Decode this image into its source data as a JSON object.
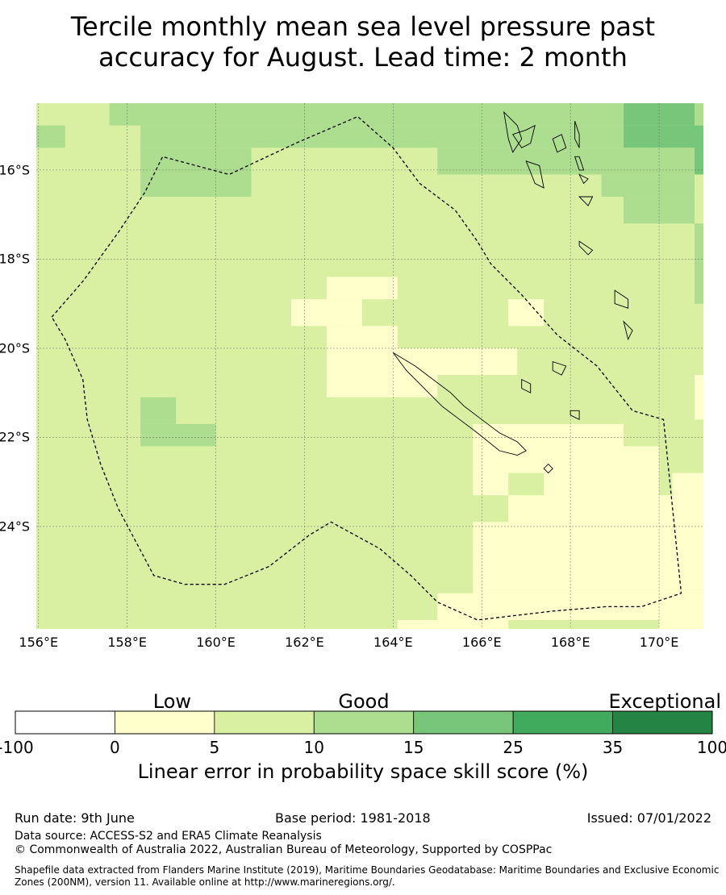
{
  "title": {
    "line1": "Tercile monthly mean sea level pressure past",
    "line2": "accuracy for August. Lead time: 2 month"
  },
  "map": {
    "lon_range": [
      155.95,
      171.0
    ],
    "lat_range": [
      -26.3,
      -14.5
    ],
    "lon_ticks": [
      {
        "value": 156,
        "label": "156°E"
      },
      {
        "value": 158,
        "label": "158°E"
      },
      {
        "value": 160,
        "label": "160°E"
      },
      {
        "value": 162,
        "label": "162°E"
      },
      {
        "value": 164,
        "label": "164°E"
      },
      {
        "value": 166,
        "label": "166°E"
      },
      {
        "value": 168,
        "label": "168°E"
      },
      {
        "value": 170,
        "label": "170°E"
      }
    ],
    "lat_ticks": [
      {
        "value": -16,
        "label": "16°S"
      },
      {
        "value": -18,
        "label": "18°S"
      },
      {
        "value": -20,
        "label": "20°S"
      },
      {
        "value": -22,
        "label": "22°S"
      },
      {
        "value": -24,
        "label": "24°S"
      }
    ],
    "base_class": 2,
    "skill_cells": [
      {
        "lon": [
          156,
          157.6
        ],
        "lat": [
          -15.0,
          -14.5
        ],
        "cls": 2
      },
      {
        "lon": [
          157.6,
          171.0
        ],
        "lat": [
          -15.0,
          -14.5
        ],
        "cls": 3
      },
      {
        "lon": [
          169.2,
          170.8
        ],
        "lat": [
          -15.0,
          -14.5
        ],
        "cls": 4
      },
      {
        "lon": [
          155.95,
          156.6
        ],
        "lat": [
          -15.5,
          -15.0
        ],
        "cls": 3
      },
      {
        "lon": [
          158.3,
          170.8
        ],
        "lat": [
          -15.5,
          -15.0
        ],
        "cls": 3
      },
      {
        "lon": [
          169.2,
          170.8
        ],
        "lat": [
          -15.5,
          -15.0
        ],
        "cls": 4
      },
      {
        "lon": [
          170.8,
          171.0
        ],
        "lat": [
          -16.1,
          -15.0
        ],
        "cls": 4
      },
      {
        "lon": [
          158.3,
          160.8
        ],
        "lat": [
          -16.6,
          -15.5
        ],
        "cls": 3
      },
      {
        "lon": [
          165.0,
          170.8
        ],
        "lat": [
          -16.1,
          -15.5
        ],
        "cls": 3
      },
      {
        "lon": [
          168.7,
          170.8
        ],
        "lat": [
          -16.6,
          -16.1
        ],
        "cls": 3
      },
      {
        "lon": [
          169.2,
          170.8
        ],
        "lat": [
          -17.2,
          -16.6
        ],
        "cls": 3
      },
      {
        "lon": [
          170.8,
          171.0
        ],
        "lat": [
          -19.0,
          -17.2
        ],
        "cls": 3
      },
      {
        "lon": [
          162.5,
          164.1
        ],
        "lat": [
          -18.9,
          -18.4
        ],
        "cls": 1
      },
      {
        "lon": [
          161.7,
          163.3
        ],
        "lat": [
          -19.5,
          -18.9
        ],
        "cls": 1
      },
      {
        "lon": [
          166.6,
          167.4
        ],
        "lat": [
          -19.5,
          -18.9
        ],
        "cls": 1
      },
      {
        "lon": [
          162.5,
          164.1
        ],
        "lat": [
          -20.0,
          -19.5
        ],
        "cls": 1
      },
      {
        "lon": [
          162.5,
          166.8
        ],
        "lat": [
          -20.6,
          -20.0
        ],
        "cls": 1
      },
      {
        "lon": [
          162.5,
          165.0
        ],
        "lat": [
          -21.1,
          -20.6
        ],
        "cls": 1
      },
      {
        "lon": [
          170.8,
          171.0
        ],
        "lat": [
          -21.6,
          -20.6
        ],
        "cls": 1
      },
      {
        "lon": [
          158.3,
          159.1
        ],
        "lat": [
          -21.7,
          -21.1
        ],
        "cls": 3
      },
      {
        "lon": [
          158.3,
          160.0
        ],
        "lat": [
          -22.2,
          -21.7
        ],
        "cls": 3
      },
      {
        "lon": [
          165.8,
          169.2
        ],
        "lat": [
          -22.2,
          -21.7
        ],
        "cls": 1
      },
      {
        "lon": [
          165.8,
          170.0
        ],
        "lat": [
          -22.8,
          -22.2
        ],
        "cls": 1
      },
      {
        "lon": [
          165.8,
          166.6
        ],
        "lat": [
          -23.3,
          -22.8
        ],
        "cls": 1
      },
      {
        "lon": [
          167.4,
          170.0
        ],
        "lat": [
          -23.3,
          -22.8
        ],
        "cls": 1
      },
      {
        "lon": [
          170.3,
          171.0
        ],
        "lat": [
          -24.4,
          -22.8
        ],
        "cls": 1
      },
      {
        "lon": [
          166.6,
          171.0
        ],
        "lat": [
          -23.9,
          -23.3
        ],
        "cls": 1
      },
      {
        "lon": [
          165.8,
          171.0
        ],
        "lat": [
          -25.5,
          -23.9
        ],
        "cls": 1
      },
      {
        "lon": [
          165.0,
          171.0
        ],
        "lat": [
          -26.1,
          -25.5
        ],
        "cls": 1
      },
      {
        "lon": [
          164.1,
          166.6
        ],
        "lat": [
          -26.3,
          -26.1
        ],
        "cls": 1
      },
      {
        "lon": [
          170.0,
          171.0
        ],
        "lat": [
          -26.3,
          -26.1
        ],
        "cls": 1
      }
    ],
    "eez_boundary": [
      [
        156.3,
        -19.3
      ],
      [
        157.0,
        -18.5
      ],
      [
        157.8,
        -17.4
      ],
      [
        158.4,
        -16.5
      ],
      [
        158.8,
        -15.7
      ],
      [
        160.3,
        -16.1
      ],
      [
        161.8,
        -15.4
      ],
      [
        163.2,
        -14.8
      ],
      [
        164.0,
        -15.5
      ],
      [
        164.6,
        -16.3
      ],
      [
        165.4,
        -16.9
      ],
      [
        165.9,
        -17.6
      ],
      [
        166.2,
        -18.1
      ],
      [
        166.9,
        -18.8
      ],
      [
        167.7,
        -19.7
      ],
      [
        168.6,
        -20.4
      ],
      [
        169.4,
        -21.4
      ],
      [
        170.1,
        -21.6
      ],
      [
        170.5,
        -25.5
      ],
      [
        169.6,
        -25.8
      ],
      [
        168.8,
        -25.8
      ],
      [
        167.6,
        -25.9
      ],
      [
        165.9,
        -26.1
      ],
      [
        165.0,
        -25.7
      ],
      [
        164.4,
        -25.1
      ],
      [
        163.7,
        -24.5
      ],
      [
        162.6,
        -23.9
      ],
      [
        162.1,
        -24.2
      ],
      [
        161.2,
        -24.9
      ],
      [
        160.2,
        -25.3
      ],
      [
        159.3,
        -25.3
      ],
      [
        158.6,
        -25.1
      ],
      [
        157.8,
        -23.6
      ],
      [
        157.4,
        -22.6
      ],
      [
        157.1,
        -21.6
      ],
      [
        157.0,
        -20.7
      ],
      [
        156.6,
        -19.8
      ],
      [
        156.3,
        -19.3
      ]
    ],
    "land_polygons": [
      [
        [
          164.0,
          -20.1
        ],
        [
          164.5,
          -20.4
        ],
        [
          164.9,
          -20.7
        ],
        [
          165.3,
          -21.0
        ],
        [
          165.6,
          -21.3
        ],
        [
          166.0,
          -21.6
        ],
        [
          166.4,
          -21.9
        ],
        [
          166.8,
          -22.1
        ],
        [
          167.0,
          -22.3
        ],
        [
          166.8,
          -22.4
        ],
        [
          166.4,
          -22.3
        ],
        [
          165.9,
          -21.9
        ],
        [
          165.5,
          -21.6
        ],
        [
          165.1,
          -21.3
        ],
        [
          164.7,
          -20.9
        ],
        [
          164.3,
          -20.5
        ],
        [
          164.0,
          -20.1
        ]
      ],
      [
        [
          166.5,
          -14.7
        ],
        [
          166.8,
          -15.0
        ],
        [
          166.9,
          -15.3
        ],
        [
          166.7,
          -15.6
        ],
        [
          166.6,
          -15.3
        ],
        [
          166.5,
          -14.7
        ]
      ],
      [
        [
          166.7,
          -15.2
        ],
        [
          167.0,
          -15.1
        ],
        [
          167.2,
          -15.0
        ],
        [
          167.1,
          -15.4
        ],
        [
          166.9,
          -15.5
        ],
        [
          166.7,
          -15.2
        ]
      ],
      [
        [
          167.0,
          -15.8
        ],
        [
          167.3,
          -15.9
        ],
        [
          167.4,
          -16.4
        ],
        [
          167.2,
          -16.3
        ],
        [
          167.0,
          -15.8
        ]
      ],
      [
        [
          167.6,
          -15.3
        ],
        [
          167.8,
          -15.2
        ],
        [
          167.9,
          -15.5
        ],
        [
          167.7,
          -15.6
        ],
        [
          167.6,
          -15.3
        ]
      ],
      [
        [
          168.1,
          -14.9
        ],
        [
          168.2,
          -15.2
        ],
        [
          168.2,
          -15.5
        ],
        [
          168.1,
          -15.3
        ],
        [
          168.1,
          -14.9
        ]
      ],
      [
        [
          168.1,
          -15.7
        ],
        [
          168.2,
          -16.0
        ],
        [
          168.3,
          -16.0
        ],
        [
          168.2,
          -15.7
        ],
        [
          168.1,
          -15.7
        ]
      ],
      [
        [
          168.2,
          -16.1
        ],
        [
          168.4,
          -16.2
        ],
        [
          168.3,
          -16.3
        ],
        [
          168.2,
          -16.1
        ]
      ],
      [
        [
          168.2,
          -16.6
        ],
        [
          168.5,
          -16.6
        ],
        [
          168.4,
          -16.8
        ],
        [
          168.2,
          -16.6
        ]
      ],
      [
        [
          168.2,
          -17.6
        ],
        [
          168.5,
          -17.8
        ],
        [
          168.4,
          -17.9
        ],
        [
          168.2,
          -17.7
        ],
        [
          168.2,
          -17.6
        ]
      ],
      [
        [
          169.0,
          -18.7
        ],
        [
          169.3,
          -18.9
        ],
        [
          169.3,
          -19.1
        ],
        [
          169.0,
          -19.0
        ],
        [
          169.0,
          -18.7
        ]
      ],
      [
        [
          169.2,
          -19.4
        ],
        [
          169.4,
          -19.6
        ],
        [
          169.3,
          -19.8
        ],
        [
          169.2,
          -19.4
        ]
      ],
      [
        [
          167.6,
          -20.3
        ],
        [
          167.9,
          -20.4
        ],
        [
          167.8,
          -20.6
        ],
        [
          167.6,
          -20.5
        ],
        [
          167.6,
          -20.3
        ]
      ],
      [
        [
          166.9,
          -20.7
        ],
        [
          167.1,
          -20.8
        ],
        [
          167.1,
          -21.0
        ],
        [
          166.9,
          -20.9
        ],
        [
          166.9,
          -20.7
        ]
      ],
      [
        [
          168.0,
          -21.4
        ],
        [
          168.2,
          -21.4
        ],
        [
          168.2,
          -21.6
        ],
        [
          168.0,
          -21.5
        ],
        [
          168.0,
          -21.4
        ]
      ],
      [
        [
          167.5,
          -22.6
        ],
        [
          167.6,
          -22.7
        ],
        [
          167.5,
          -22.8
        ],
        [
          167.4,
          -22.7
        ],
        [
          167.5,
          -22.6
        ]
      ]
    ]
  },
  "colorbar": {
    "categories": [
      {
        "name": "Low",
        "position": 0.225
      },
      {
        "name": "Good",
        "position": 0.5
      },
      {
        "name": "Exceptional",
        "position": 0.92
      }
    ],
    "bins": [
      {
        "from": -100,
        "to": 0,
        "color": "#ffffff"
      },
      {
        "from": 0,
        "to": 5,
        "color": "#ffffcc"
      },
      {
        "from": 5,
        "to": 10,
        "color": "#d9f0a3"
      },
      {
        "from": 10,
        "to": 15,
        "color": "#addd8e"
      },
      {
        "from": 15,
        "to": 25,
        "color": "#78c679"
      },
      {
        "from": 25,
        "to": 35,
        "color": "#41ab5d"
      },
      {
        "from": 35,
        "to": 100,
        "color": "#238443"
      }
    ],
    "tick_labels": [
      "-100",
      "0",
      "5",
      "10",
      "15",
      "25",
      "35",
      "100"
    ],
    "label": "Linear error in probability space skill score (%)"
  },
  "footer": {
    "run_date": "Run date: 9th June",
    "base_period": "Base period: 1981-2018",
    "issued": "Issued: 07/01/2022",
    "data_source": "Data source: ACCESS-S2 and ERA5 Climate Reanalysis",
    "copyright": "© Commonwealth of Australia 2022, Australian Bureau of Meteorology, Supported by COSPPac",
    "shapefile": "Shapefile data extracted from Flanders Marine Institute (2019), Maritime Boundaries Geodatabase: Maritime Boundaries and Exclusive Economic Zones (200NM), version 11. Available online at http://www.marineregions.org/."
  }
}
